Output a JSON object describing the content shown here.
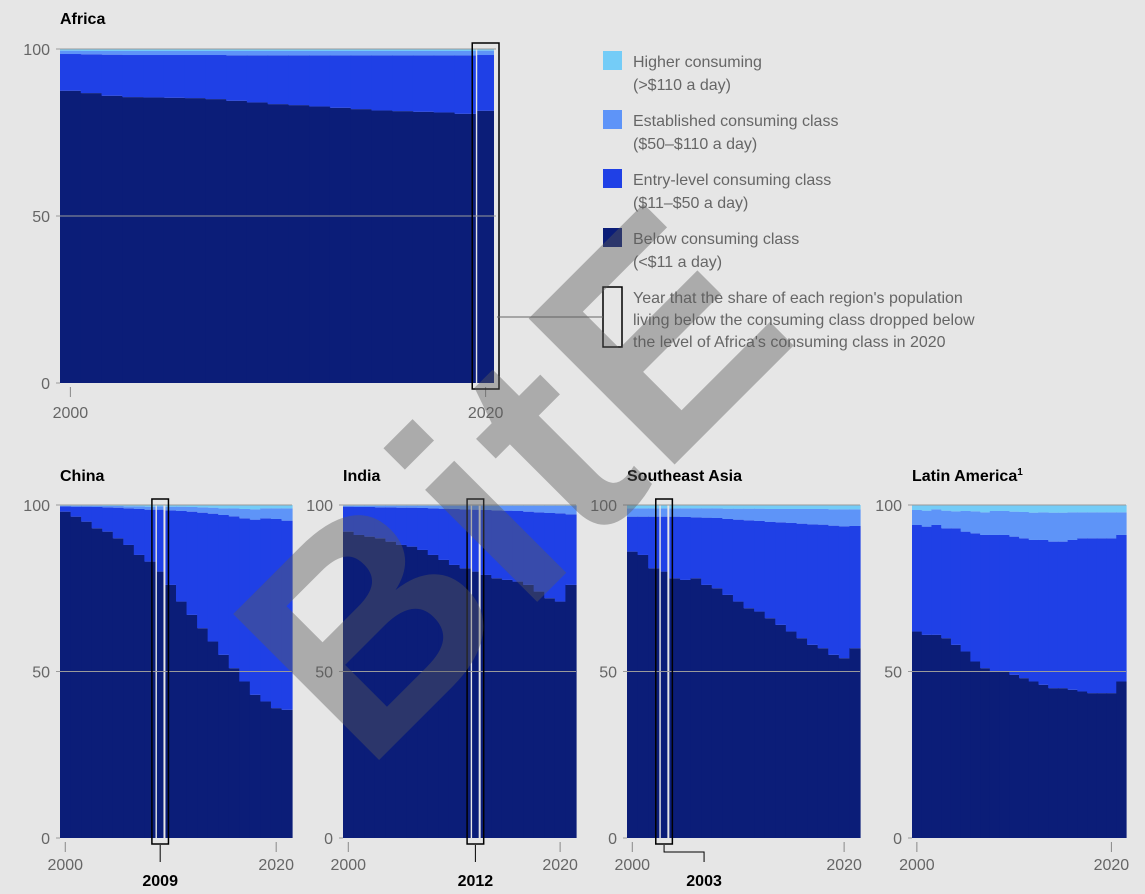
{
  "colors": {
    "below": "#0b1d78",
    "entry": "#1f40e6",
    "established": "#5e94f8",
    "higher": "#74ccf7",
    "frame": "#000000",
    "gridline": "#9a9a9a"
  },
  "watermark": "BitE",
  "legend": {
    "items": [
      {
        "key": "higher",
        "label": "Higher consuming",
        "sub": "(>$110 a day)"
      },
      {
        "key": "established",
        "label": "Established consuming class",
        "sub": "($50–$110 a day)"
      },
      {
        "key": "entry",
        "label": "Entry-level consuming class",
        "sub": "($11–$50 a day)"
      },
      {
        "key": "below",
        "label": "Below consuming class",
        "sub": "(<$11 a day)"
      }
    ],
    "note_lines": [
      "Year that the share of each region's population",
      "living below the consuming class dropped below",
      "the level of Africa's consuming class in 2020"
    ]
  },
  "chart_data": [
    {
      "type": "bar",
      "stacked": true,
      "title": "Africa",
      "title_sup": "",
      "years": [
        2000,
        2001,
        2002,
        2003,
        2004,
        2005,
        2006,
        2007,
        2008,
        2009,
        2010,
        2011,
        2012,
        2013,
        2014,
        2015,
        2016,
        2017,
        2018,
        2019,
        2020
      ],
      "below": [
        87.5,
        86.8,
        86,
        85.6,
        85.5,
        85.4,
        85.3,
        85,
        84.5,
        84,
        83.5,
        83.2,
        82.8,
        82.4,
        82,
        81.6,
        81.4,
        81.2,
        81,
        80.6,
        81.5
      ],
      "entry": [
        11,
        11.6,
        12.3,
        12.6,
        12.7,
        12.8,
        12.9,
        13.2,
        13.6,
        14.1,
        14.6,
        14.9,
        15.3,
        15.7,
        16.1,
        16.5,
        16.7,
        16.9,
        17.1,
        17.5,
        16.7
      ],
      "established": [
        1,
        1,
        1.1,
        1.2,
        1.2,
        1.2,
        1.2,
        1.2,
        1.3,
        1.3,
        1.3,
        1.3,
        1.3,
        1.3,
        1.3,
        1.3,
        1.3,
        1.3,
        1.3,
        1.3,
        1.3
      ],
      "higher": [
        0.5,
        0.6,
        0.6,
        0.6,
        0.6,
        0.6,
        0.6,
        0.6,
        0.6,
        0.6,
        0.6,
        0.6,
        0.6,
        0.6,
        0.6,
        0.6,
        0.6,
        0.6,
        0.6,
        0.6,
        0.5
      ],
      "xticks": [
        2000,
        2020
      ],
      "yticks": [
        0,
        50,
        100
      ],
      "ylim": [
        0,
        100
      ],
      "highlight_year": 2020,
      "callout": ""
    },
    {
      "type": "bar",
      "stacked": true,
      "title": "China",
      "title_sup": "",
      "years": [
        2000,
        2001,
        2002,
        2003,
        2004,
        2005,
        2006,
        2007,
        2008,
        2009,
        2010,
        2011,
        2012,
        2013,
        2014,
        2015,
        2016,
        2017,
        2018,
        2019,
        2020,
        2021
      ],
      "below": [
        98,
        96.5,
        95,
        93,
        92,
        90,
        88,
        85,
        83,
        80,
        76,
        71,
        67,
        63,
        59,
        55,
        51,
        47,
        43,
        41,
        39,
        38.5
      ],
      "entry": [
        1.6,
        3,
        4.5,
        6.4,
        7.3,
        9.2,
        11,
        13.8,
        15.6,
        18.6,
        22.4,
        27.2,
        31,
        34.7,
        38.4,
        42,
        45.6,
        49,
        52.6,
        55,
        56.8,
        56.8
      ],
      "established": [
        0.2,
        0.3,
        0.3,
        0.4,
        0.4,
        0.5,
        0.6,
        0.8,
        0.9,
        1,
        1.1,
        1.3,
        1.4,
        1.6,
        1.8,
        2,
        2.4,
        2.8,
        3.1,
        3,
        3.2,
        3.7
      ],
      "higher": [
        0.2,
        0.2,
        0.2,
        0.2,
        0.3,
        0.3,
        0.4,
        0.4,
        0.5,
        0.4,
        0.5,
        0.5,
        0.6,
        0.7,
        0.8,
        1,
        1,
        1.2,
        1.3,
        1,
        1,
        1
      ],
      "xticks": [
        2000,
        2020
      ],
      "yticks": [
        0,
        50,
        100
      ],
      "ylim": [
        0,
        100
      ],
      "highlight_year": 2009,
      "callout": "2009"
    },
    {
      "type": "bar",
      "stacked": true,
      "title": "India",
      "title_sup": "",
      "years": [
        2000,
        2001,
        2002,
        2003,
        2004,
        2005,
        2006,
        2007,
        2008,
        2009,
        2010,
        2011,
        2012,
        2013,
        2014,
        2015,
        2016,
        2017,
        2018,
        2019,
        2020,
        2021
      ],
      "below": [
        92,
        91,
        90.5,
        90,
        89,
        88,
        87.5,
        86.5,
        85,
        83.5,
        82,
        81,
        80,
        79,
        78,
        77.5,
        77,
        76,
        74,
        72,
        71,
        76
      ],
      "entry": [
        7.5,
        8.4,
        8.9,
        9.3,
        10.3,
        11.2,
        11.7,
        12.6,
        14,
        15.4,
        16.8,
        17.7,
        18.6,
        19.5,
        20.4,
        20.8,
        21.2,
        22,
        23.8,
        25.6,
        26.5,
        21.2
      ],
      "established": [
        0.3,
        0.4,
        0.4,
        0.5,
        0.5,
        0.6,
        0.6,
        0.7,
        0.8,
        0.9,
        1,
        1.1,
        1.2,
        1.3,
        1.4,
        1.5,
        1.6,
        1.8,
        2,
        2.2,
        2.3,
        2.6
      ],
      "higher": [
        0.2,
        0.2,
        0.2,
        0.2,
        0.2,
        0.2,
        0.2,
        0.2,
        0.2,
        0.2,
        0.2,
        0.2,
        0.2,
        0.2,
        0.2,
        0.2,
        0.2,
        0.2,
        0.2,
        0.2,
        0.2,
        0.2
      ],
      "xticks": [
        2000,
        2020
      ],
      "yticks": [
        0,
        50,
        100
      ],
      "ylim": [
        0,
        100
      ],
      "highlight_year": 2012,
      "callout": "2012"
    },
    {
      "type": "bar",
      "stacked": true,
      "title": "Southeast Asia",
      "title_sup": "",
      "years": [
        2000,
        2001,
        2002,
        2003,
        2004,
        2005,
        2006,
        2007,
        2008,
        2009,
        2010,
        2011,
        2012,
        2013,
        2014,
        2015,
        2016,
        2017,
        2018,
        2019,
        2020,
        2021
      ],
      "below": [
        86,
        85,
        81,
        80,
        78,
        77.5,
        78,
        76,
        75,
        73,
        71,
        69,
        68,
        66,
        64,
        62,
        60,
        58,
        57,
        55,
        54,
        57
      ],
      "entry": [
        10.5,
        11.5,
        15.5,
        16.5,
        18.5,
        18.9,
        18.3,
        20.2,
        21.1,
        22.8,
        24.6,
        26.4,
        27.2,
        28.9,
        30.8,
        32.6,
        34.4,
        36.2,
        37.1,
        38.8,
        39.6,
        36.7
      ],
      "established": [
        2.5,
        2.5,
        2.5,
        2.5,
        2.5,
        2.6,
        2.7,
        2.8,
        2.9,
        3.1,
        3.3,
        3.5,
        3.7,
        3.9,
        4,
        4.2,
        4.4,
        4.6,
        4.7,
        4.9,
        5.1,
        5
      ],
      "higher": [
        1,
        1,
        1,
        1,
        1,
        1,
        1,
        1,
        1,
        1.1,
        1.1,
        1.1,
        1.1,
        1.2,
        1.2,
        1.2,
        1.2,
        1.2,
        1.2,
        1.3,
        1.3,
        1.3
      ],
      "xticks": [
        2000,
        2020
      ],
      "yticks": [
        0,
        50,
        100
      ],
      "ylim": [
        0,
        100
      ],
      "highlight_year": 2003,
      "callout": "2003"
    },
    {
      "type": "bar",
      "stacked": true,
      "title": "Latin America",
      "title_sup": "1",
      "years": [
        2000,
        2001,
        2002,
        2003,
        2004,
        2005,
        2006,
        2007,
        2008,
        2009,
        2010,
        2011,
        2012,
        2013,
        2014,
        2015,
        2016,
        2017,
        2018,
        2019,
        2020,
        2021
      ],
      "below": [
        62,
        61,
        61,
        60,
        58,
        56,
        53,
        51,
        50,
        50,
        49,
        48,
        47,
        46,
        45,
        45,
        44.5,
        44,
        43.5,
        43.5,
        43.5,
        47
      ],
      "entry": [
        32,
        32.5,
        33,
        33,
        35,
        36,
        38.5,
        40,
        41,
        41,
        41.5,
        42,
        42.5,
        43.5,
        44,
        44,
        45,
        46,
        46.5,
        46.5,
        46.5,
        44
      ],
      "established": [
        4.5,
        4.8,
        4.7,
        5.3,
        5.1,
        6.2,
        6.6,
        6.8,
        7.2,
        7.2,
        7.5,
        7.9,
        8.2,
        8.3,
        8.7,
        8.7,
        8.3,
        7.8,
        7.8,
        7.8,
        7.8,
        6.8
      ],
      "higher": [
        1.5,
        1.7,
        1.3,
        1.7,
        1.9,
        1.8,
        1.9,
        2.2,
        1.8,
        1.8,
        2,
        2.1,
        2.3,
        2.2,
        2.3,
        2.3,
        2.2,
        2.2,
        2.2,
        2.2,
        2.2,
        2.2
      ],
      "xticks": [
        2000,
        2020
      ],
      "yticks": [
        0,
        50,
        100
      ],
      "ylim": [
        0,
        100
      ],
      "highlight_year": null,
      "callout": ""
    }
  ]
}
